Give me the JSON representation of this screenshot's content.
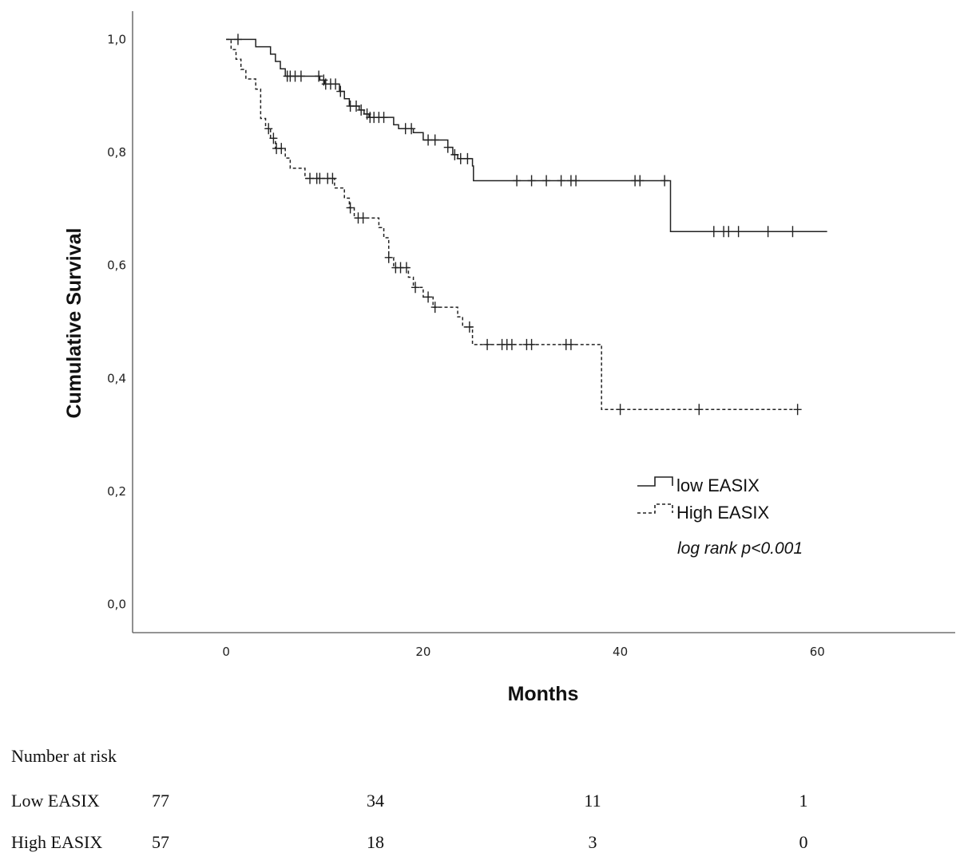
{
  "chart_data": {
    "type": "line",
    "subtype": "kaplan-meier",
    "title": "",
    "xlabel": "Months",
    "ylabel": "Cumulative Survival",
    "xlim": [
      -9.5,
      74
    ],
    "ylim": [
      -0.05,
      1.05
    ],
    "x_ticks": [
      0,
      20,
      40,
      60
    ],
    "x_tick_labels": [
      "0",
      "20",
      "40",
      "60"
    ],
    "y_ticks": [
      0,
      0.2,
      0.4,
      0.6,
      0.8,
      1.0
    ],
    "y_tick_labels": [
      "0,0",
      "0,2",
      "0,4",
      "0,6",
      "0,8",
      "1,0"
    ],
    "grid": false,
    "legend_position": "bottom-right",
    "annotation": "log rank p<0.001",
    "series": [
      {
        "name": "low EASIX",
        "line_style": "solid",
        "steps": [
          [
            0,
            1.0
          ],
          [
            3,
            0.987
          ],
          [
            4.5,
            0.974
          ],
          [
            5,
            0.961
          ],
          [
            5.5,
            0.948
          ],
          [
            6,
            0.935
          ],
          [
            9.5,
            0.928
          ],
          [
            10,
            0.921
          ],
          [
            11.5,
            0.908
          ],
          [
            12,
            0.895
          ],
          [
            12.5,
            0.882
          ],
          [
            13.5,
            0.875
          ],
          [
            14,
            0.868
          ],
          [
            14.5,
            0.862
          ],
          [
            17,
            0.849
          ],
          [
            17.5,
            0.842
          ],
          [
            19,
            0.835
          ],
          [
            20,
            0.822
          ],
          [
            22.5,
            0.809
          ],
          [
            23,
            0.796
          ],
          [
            23.5,
            0.789
          ],
          [
            25,
            0.776
          ],
          [
            25.1,
            0.75
          ],
          [
            45,
            0.75
          ],
          [
            45.1,
            0.66
          ],
          [
            61,
            0.66
          ]
        ],
        "censored": [
          1.2,
          6.2,
          6.5,
          7,
          7.6,
          9.4,
          9.9,
          10.1,
          10.6,
          11.1,
          11.6,
          12.6,
          13.2,
          13.7,
          14.3,
          14.6,
          15,
          15.5,
          16,
          18.2,
          18.8,
          20.5,
          21.2,
          22.5,
          23.2,
          23.8,
          24.5,
          29.5,
          31,
          32.5,
          34,
          35,
          35.5,
          41.5,
          42,
          44.5,
          49.5,
          50.5,
          51,
          52,
          55,
          57.5
        ]
      },
      {
        "name": "High EASIX",
        "line_style": "dashed",
        "steps": [
          [
            0,
            1.0
          ],
          [
            0.5,
            0.982
          ],
          [
            1,
            0.965
          ],
          [
            1.5,
            0.947
          ],
          [
            2,
            0.93
          ],
          [
            3,
            0.912
          ],
          [
            3.5,
            0.86
          ],
          [
            4,
            0.842
          ],
          [
            4.5,
            0.825
          ],
          [
            5,
            0.807
          ],
          [
            6,
            0.79
          ],
          [
            6.5,
            0.772
          ],
          [
            8,
            0.754
          ],
          [
            11,
            0.737
          ],
          [
            12,
            0.719
          ],
          [
            12.5,
            0.702
          ],
          [
            13,
            0.684
          ],
          [
            15.5,
            0.667
          ],
          [
            16,
            0.649
          ],
          [
            16.5,
            0.614
          ],
          [
            17,
            0.596
          ],
          [
            18.5,
            0.579
          ],
          [
            19,
            0.561
          ],
          [
            20,
            0.544
          ],
          [
            21,
            0.526
          ],
          [
            23.5,
            0.509
          ],
          [
            24,
            0.491
          ],
          [
            25,
            0.46
          ],
          [
            38,
            0.46
          ],
          [
            38.1,
            0.345
          ],
          [
            57.5,
            0.345
          ]
        ],
        "censored": [
          4.3,
          4.8,
          5.1,
          5.6,
          8.5,
          9.2,
          9.5,
          10.3,
          10.8,
          12.6,
          13.4,
          13.9,
          16.5,
          17.2,
          17.7,
          18.3,
          19.2,
          20.5,
          21.2,
          24.7,
          26.5,
          28,
          28.5,
          29,
          30.5,
          31,
          34.5,
          35,
          40,
          48,
          58
        ]
      }
    ],
    "number_at_risk": {
      "title": "Number at risk",
      "time_points": [
        0,
        20,
        40,
        60
      ],
      "rows": [
        {
          "label": "Low EASIX",
          "values": [
            "77",
            "34",
            "11",
            "1"
          ]
        },
        {
          "label": "High EASIX",
          "values": [
            "57",
            "18",
            "3",
            "0"
          ]
        }
      ]
    }
  }
}
